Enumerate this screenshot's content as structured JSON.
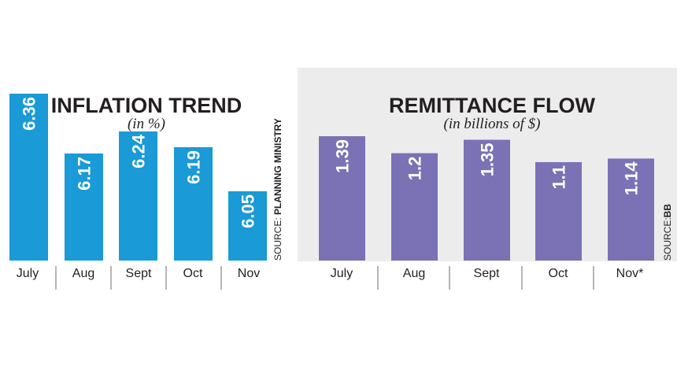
{
  "charts": {
    "inflation": {
      "title": "INFLATION TREND",
      "subtitle": "(in %)",
      "source_label": "SOURCE:",
      "source_name": "PLANNING MINISTRY",
      "bar_color": "#1a9ad6"
    },
    "remittance": {
      "title": "REMITTANCE FLOW",
      "subtitle": "(in billions of $)",
      "source_label": "SOURCE:",
      "source_name": "BB",
      "bar_color": "#7a72b5",
      "background": "#ececec"
    }
  },
  "chart_data": [
    {
      "type": "bar",
      "title": "INFLATION TREND",
      "subtitle": "(in %)",
      "categories": [
        "July",
        "Aug",
        "Sept",
        "Oct",
        "Nov"
      ],
      "values": [
        6.36,
        6.17,
        6.24,
        6.19,
        6.05
      ],
      "value_labels": [
        "6.36",
        "6.17",
        "6.24",
        "6.19",
        "6.05"
      ],
      "ylim": [
        5.83,
        6.36
      ],
      "source": "SOURCE: PLANNING MINISTRY"
    },
    {
      "type": "bar",
      "title": "REMITTANCE FLOW",
      "subtitle": "(in billions of $)",
      "categories": [
        "July",
        "Aug",
        "Sept",
        "Oct",
        "Nov*"
      ],
      "values": [
        1.39,
        1.2,
        1.35,
        1.1,
        1.14
      ],
      "value_labels": [
        "1.39",
        "1.2",
        "1.35",
        "1.1",
        "1.14"
      ],
      "ylim": [
        0,
        1.39
      ],
      "source": "SOURCE:BB"
    }
  ]
}
